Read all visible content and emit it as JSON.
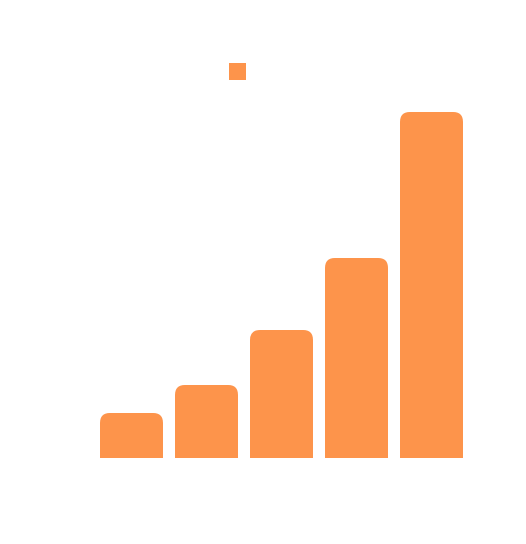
{
  "chart_data": {
    "type": "bar",
    "categories": [
      null,
      null,
      null,
      null,
      null
    ],
    "values": [
      45,
      73,
      128,
      200,
      346
    ],
    "color": "#fd944b",
    "ylim": [
      0,
      400
    ],
    "legend": true
  }
}
